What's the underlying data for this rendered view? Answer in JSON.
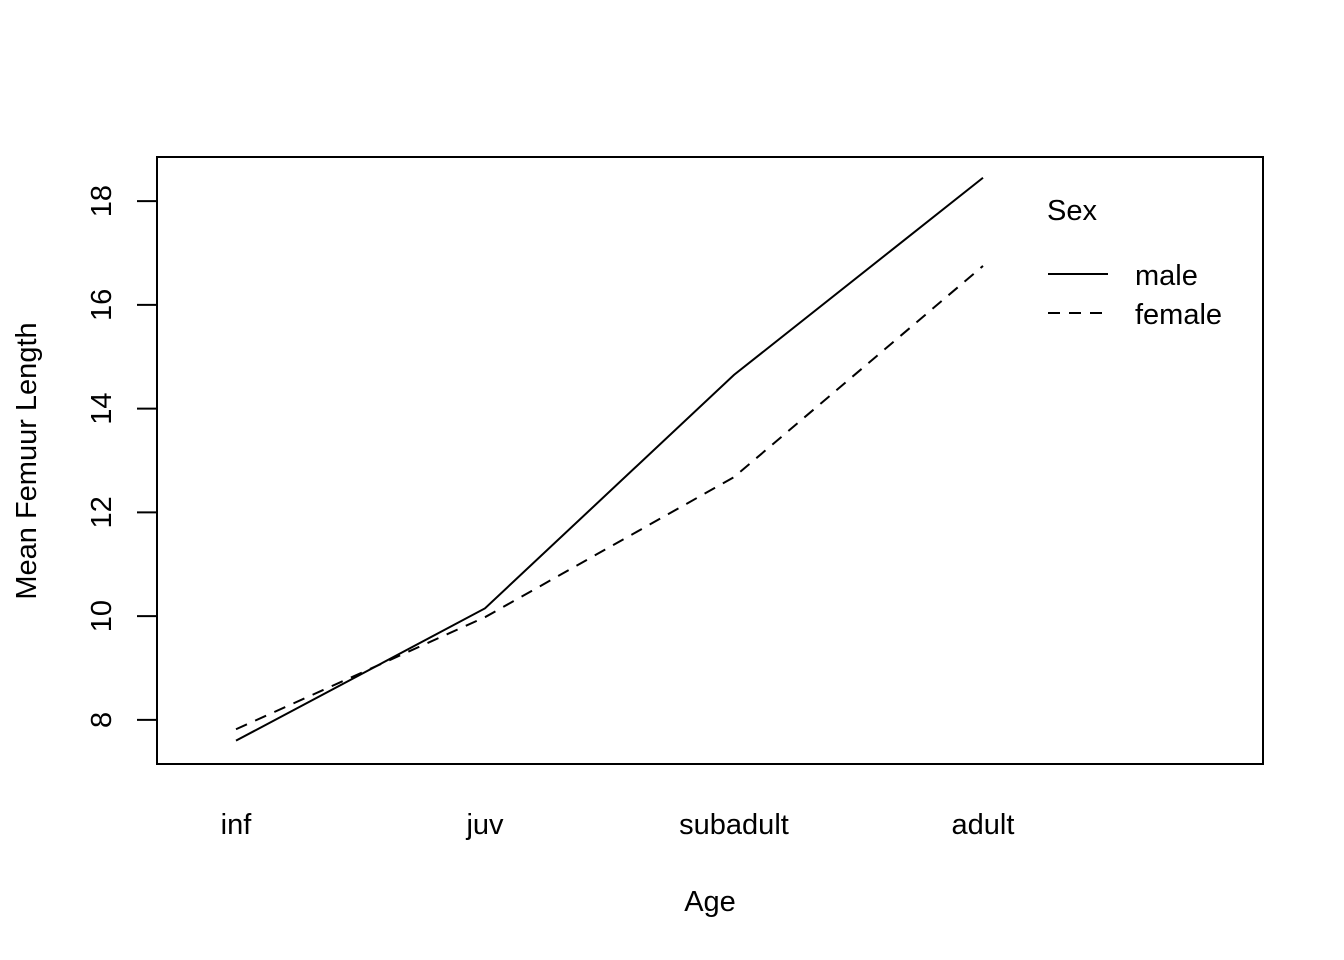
{
  "chart_data": {
    "type": "line",
    "xlabel": "Age",
    "ylabel": "Mean Femuur Length",
    "categories": [
      "inf",
      "juv",
      "subadult",
      "adult"
    ],
    "yticks": [
      "8",
      "10",
      "12",
      "14",
      "16",
      "18"
    ],
    "ylim": [
      7.15,
      18.85
    ],
    "series": [
      {
        "name": "male",
        "line_style": "solid",
        "values": [
          7.6,
          10.15,
          14.65,
          18.45
        ]
      },
      {
        "name": "female",
        "line_style": "dashed",
        "values": [
          7.82,
          9.98,
          12.68,
          16.75
        ]
      }
    ],
    "legend": {
      "title": "Sex",
      "position": "top-right",
      "entries": [
        "male",
        "female"
      ]
    },
    "grid": false,
    "line_color": "#000000"
  }
}
